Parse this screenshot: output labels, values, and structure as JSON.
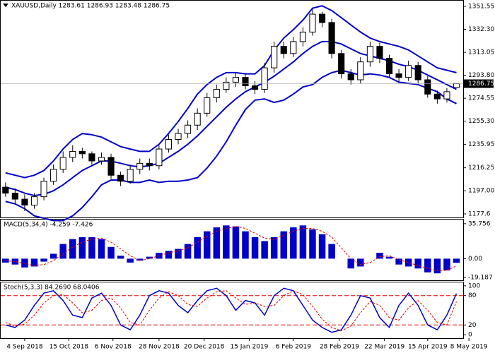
{
  "chart_data": [
    {
      "type": "candlestick",
      "title": "XAUUSD,Daily  1283.61 1286.93 1283.48 1286.75",
      "open": [
        1200,
        1195,
        1190,
        1185,
        1192,
        1205,
        1215,
        1225,
        1230,
        1228,
        1222,
        1225,
        1210,
        1205,
        1215,
        1220,
        1218,
        1232,
        1240,
        1245,
        1252,
        1262,
        1275,
        1282,
        1288,
        1292,
        1285,
        1282,
        1300,
        1318,
        1312,
        1322,
        1330,
        1345,
        1338,
        1312,
        1295,
        1290,
        1305,
        1318,
        1308,
        1295,
        1292,
        1302,
        1290,
        1278,
        1274,
        1283.61
      ],
      "high": [
        1204,
        1199,
        1194,
        1195,
        1208,
        1219,
        1230,
        1235,
        1233,
        1230,
        1229,
        1228,
        1213,
        1219,
        1224,
        1224,
        1235,
        1244,
        1249,
        1256,
        1266,
        1279,
        1286,
        1292,
        1296,
        1295,
        1289,
        1304,
        1322,
        1322,
        1326,
        1334,
        1349,
        1347,
        1341,
        1315,
        1299,
        1309,
        1322,
        1321,
        1311,
        1299,
        1306,
        1305,
        1293,
        1281,
        1283,
        1286.93
      ],
      "low": [
        1192,
        1186,
        1180,
        1182,
        1189,
        1202,
        1212,
        1221,
        1224,
        1219,
        1219,
        1207,
        1201,
        1203,
        1211,
        1214,
        1215,
        1229,
        1236,
        1241,
        1248,
        1259,
        1271,
        1279,
        1284,
        1282,
        1278,
        1279,
        1296,
        1308,
        1309,
        1318,
        1327,
        1334,
        1308,
        1291,
        1286,
        1287,
        1301,
        1304,
        1292,
        1288,
        1289,
        1287,
        1275,
        1270,
        1271,
        1283.48
      ],
      "close": [
        1195,
        1190,
        1185,
        1192,
        1205,
        1215,
        1225,
        1230,
        1228,
        1222,
        1225,
        1210,
        1205,
        1215,
        1220,
        1218,
        1232,
        1240,
        1245,
        1252,
        1262,
        1275,
        1282,
        1288,
        1292,
        1285,
        1282,
        1300,
        1318,
        1312,
        1322,
        1330,
        1345,
        1338,
        1312,
        1295,
        1290,
        1305,
        1318,
        1308,
        1295,
        1292,
        1302,
        1290,
        1278,
        1274,
        1280,
        1286.75
      ],
      "series": [
        {
          "color": "#0000c8",
          "values": [
            1212,
            1210,
            1208,
            1210,
            1214,
            1222,
            1232,
            1240,
            1245,
            1244,
            1242,
            1238,
            1234,
            1232,
            1230,
            1230,
            1236,
            1245,
            1255,
            1266,
            1278,
            1286,
            1292,
            1296,
            1296,
            1295,
            1295,
            1302,
            1315,
            1325,
            1332,
            1340,
            1350,
            1352,
            1348,
            1342,
            1336,
            1330,
            1325,
            1322,
            1320,
            1318,
            1315,
            1310,
            1305,
            1300,
            1298,
            1296
          ]
        },
        {
          "color": "#0000c8",
          "values": [
            1200,
            1198,
            1195,
            1193,
            1194,
            1197,
            1202,
            1208,
            1214,
            1218,
            1222,
            1222,
            1220,
            1218,
            1217,
            1218,
            1220,
            1225,
            1230,
            1236,
            1243,
            1251,
            1259,
            1267,
            1274,
            1280,
            1284,
            1288,
            1293,
            1299,
            1305,
            1312,
            1318,
            1322,
            1322,
            1320,
            1316,
            1312,
            1310,
            1308,
            1306,
            1303,
            1301,
            1298,
            1294,
            1290,
            1286,
            1282
          ]
        },
        {
          "color": "#0000c8",
          "values": [
            1188,
            1186,
            1182,
            1176,
            1174,
            1172,
            1172,
            1176,
            1183,
            1192,
            1202,
            1206,
            1206,
            1204,
            1204,
            1206,
            1204,
            1205,
            1205,
            1206,
            1208,
            1216,
            1226,
            1238,
            1252,
            1265,
            1273,
            1274,
            1271,
            1273,
            1278,
            1284,
            1286,
            1292,
            1296,
            1298,
            1296,
            1294,
            1295,
            1294,
            1292,
            1288,
            1287,
            1286,
            1283,
            1280,
            1274,
            1270
          ]
        }
      ],
      "ylim": [
        1174.65,
        1356.27
      ],
      "yticks": [
        1351.55,
        {
          "value": 1332.3,
          "label": "1332.30"
        },
        1313.05,
        {
          "value": 1293.8,
          "label": "1293.80"
        },
        1274.55,
        {
          "value": 1255.3,
          "label": "1255.30"
        },
        1235.95,
        1216.25,
        {
          "value": 1197,
          "label": "1197.00"
        },
        1177.6
      ]
    },
    {
      "type": "macd",
      "title": "MACD(5,34,4) -4.259 -7.426",
      "series": [
        {
          "color": "#0000c8",
          "values": [
            -4,
            -6,
            -9,
            -8,
            -3,
            5,
            15,
            20,
            22,
            22,
            20,
            12,
            3,
            -4,
            -2,
            2,
            6,
            8,
            10,
            15,
            22,
            28,
            32,
            34,
            33,
            28,
            22,
            18,
            22,
            28,
            32,
            34,
            30,
            25,
            15,
            0,
            -10,
            -8,
            0,
            6,
            2,
            -6,
            -8,
            -10,
            -14,
            -15,
            -12,
            -4.259
          ]
        },
        {
          "color": "#e00000",
          "values": [
            -2,
            -3,
            -5,
            -7,
            -6,
            -2,
            5,
            12,
            17,
            20,
            21,
            17,
            10,
            3,
            -2,
            0,
            3,
            6,
            8,
            11,
            17,
            23,
            28,
            31,
            33,
            31,
            26,
            21,
            20,
            24,
            28,
            31,
            31,
            28,
            22,
            11,
            0,
            -6,
            -4,
            2,
            3,
            -1,
            -4,
            -7,
            -10,
            -12,
            -12,
            -7.426
          ]
        }
      ],
      "ylim": [
        -22.1,
        40
      ],
      "yticks": [
        35.756,
        {
          "value": 0,
          "label": "0.00"
        },
        -19.187
      ]
    },
    {
      "type": "stochastic",
      "title": "Stoch(5,3,3) 84.2690 68.0406",
      "series": [
        {
          "color": "#0000c8",
          "values": [
            20,
            15,
            30,
            60,
            85,
            90,
            70,
            40,
            35,
            75,
            85,
            60,
            20,
            10,
            40,
            80,
            90,
            85,
            60,
            45,
            70,
            90,
            95,
            80,
            50,
            70,
            65,
            40,
            80,
            95,
            90,
            60,
            30,
            15,
            5,
            10,
            40,
            80,
            75,
            35,
            15,
            60,
            85,
            60,
            20,
            10,
            40,
            84.269
          ]
        },
        {
          "color": "#e00000",
          "values": [
            25,
            18,
            22,
            40,
            65,
            80,
            82,
            65,
            45,
            50,
            70,
            75,
            55,
            25,
            20,
            50,
            75,
            88,
            80,
            62,
            58,
            75,
            88,
            90,
            75,
            62,
            65,
            58,
            60,
            80,
            90,
            82,
            58,
            32,
            15,
            8,
            18,
            45,
            68,
            60,
            35,
            30,
            55,
            70,
            50,
            25,
            20,
            68.0406
          ]
        }
      ],
      "levels": [
        80,
        20
      ],
      "level_color": "#e00000",
      "ylim": [
        -7,
        107
      ],
      "yticks": [
        100,
        80,
        20,
        0
      ],
      "xlim": [
        -0.5,
        47.7
      ],
      "xticks": [
        {
          "value": 2,
          "label": "4 Sep 2018"
        },
        {
          "value": 6.6,
          "label": "15 Oct 2018"
        },
        {
          "value": 11.2,
          "label": "6 Nov 2018"
        },
        {
          "value": 16,
          "label": "28 Nov 2018"
        },
        {
          "value": 20.7,
          "label": "20 Dec 2018"
        },
        {
          "value": 25.4,
          "label": "15 Jan 2019"
        },
        {
          "value": 30,
          "label": "6 Feb 2019"
        },
        {
          "value": 34.8,
          "label": "28 Feb 2019"
        },
        {
          "value": 39.5,
          "label": "22 Mar 2019"
        },
        {
          "value": 44,
          "label": "15 Apr 2019"
        },
        {
          "value": 48.3,
          "label": "8 May 2019"
        }
      ]
    }
  ]
}
